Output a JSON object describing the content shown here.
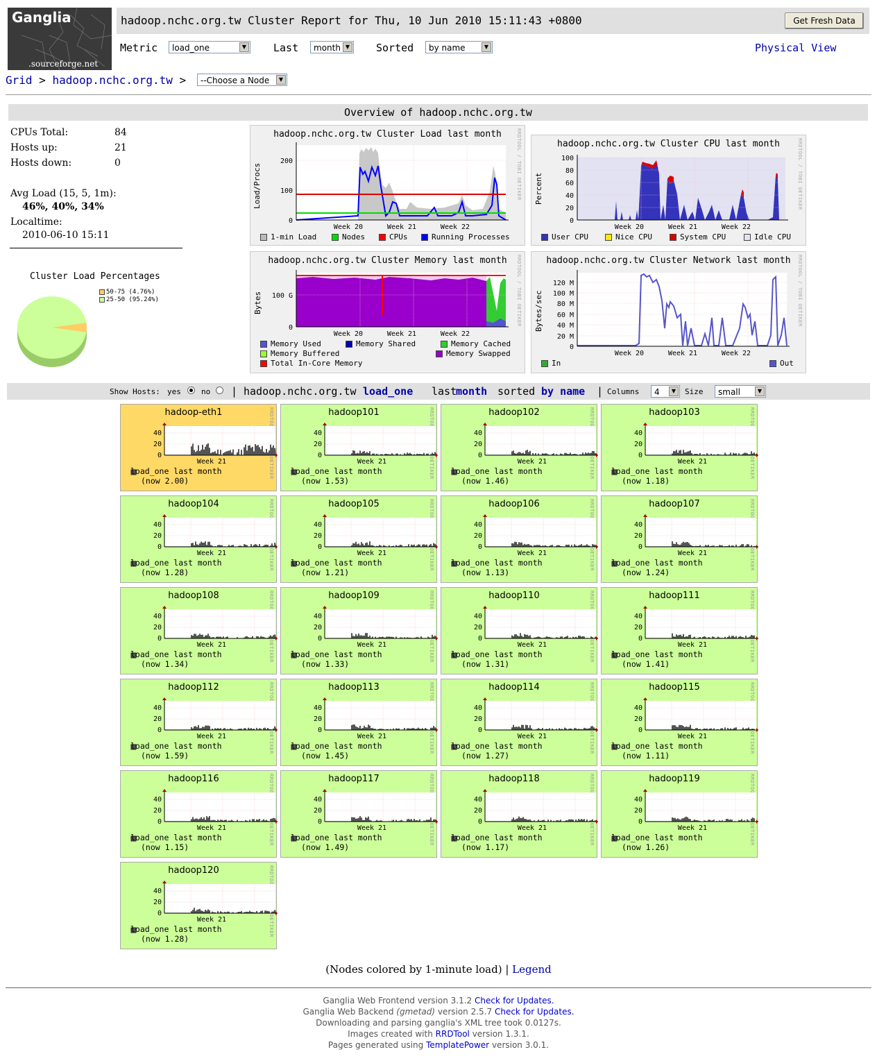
{
  "header": {
    "logo_text": "Ganglia",
    "logo_sub": ".sourceforge.net",
    "title": "hadoop.nchc.org.tw Cluster Report for Thu, 10 Jun 2010 15:11:43 +0800",
    "fresh_button": "Get Fresh Data",
    "metric_label": "Metric",
    "metric_value": "load_one",
    "last_label": "Last",
    "last_value": "month",
    "sorted_label": "Sorted",
    "sorted_value": "by name",
    "physical_view": "Physical View"
  },
  "breadcrumb": {
    "grid": "Grid",
    "sep1": ">",
    "cluster": "hadoop.nchc.org.tw",
    "sep2": ">",
    "node_select": "--Choose a Node"
  },
  "overview": {
    "title": "Overview of hadoop.nchc.org.tw",
    "cpus_label": "CPUs Total:",
    "cpus_value": "84",
    "hosts_up_label": "Hosts up:",
    "hosts_up_value": "21",
    "hosts_down_label": "Hosts down:",
    "hosts_down_value": "0",
    "avg_load_label": "Avg Load (15, 5, 1m):",
    "avg_load_value": "46%, 40%, 34%",
    "localtime_label": "Localtime:",
    "localtime_value": "2010-06-10 15:11",
    "pie_title": "Cluster Load Percentages",
    "pie_legend": [
      {
        "label": "50-75 (4.76%)",
        "color": "#ffcc66",
        "pct": 4.76
      },
      {
        "label": "25-50 (95.24%)",
        "color": "#ccff99",
        "pct": 95.24
      }
    ]
  },
  "cluster_graphs": {
    "load": {
      "title": "hadoop.nchc.org.tw Cluster Load last month",
      "ylabel": "Load/Procs",
      "yticks": [
        "200",
        "100",
        "0"
      ],
      "xticks": [
        "Week 20",
        "Week 21",
        "Week 22"
      ],
      "legend": [
        {
          "label": "1-min Load",
          "color": "#bbbbbb"
        },
        {
          "label": "Nodes",
          "color": "#00dd00"
        },
        {
          "label": "CPUs",
          "color": "#ff0000"
        },
        {
          "label": "Running Processes",
          "color": "#0000ff"
        }
      ]
    },
    "cpu": {
      "title": "hadoop.nchc.org.tw Cluster CPU last month",
      "ylabel": "Percent",
      "yticks": [
        "100",
        "80",
        "60",
        "40",
        "20",
        "0"
      ],
      "xticks": [
        "Week 20",
        "Week 21",
        "Week 22"
      ],
      "legend": [
        {
          "label": "User CPU",
          "color": "#3333bb"
        },
        {
          "label": "Nice CPU",
          "color": "#ffea00"
        },
        {
          "label": "System CPU",
          "color": "#dd0000"
        },
        {
          "label": "Idle CPU",
          "color": "#e2e2f2"
        }
      ]
    },
    "memory": {
      "title": "hadoop.nchc.org.tw Cluster Memory last month",
      "ylabel": "Bytes",
      "yticks": [
        "100 G",
        "0"
      ],
      "xticks": [
        "Week 20",
        "Week 21",
        "Week 22"
      ],
      "legend": [
        {
          "label": "Memory Used",
          "color": "#5555cc"
        },
        {
          "label": "Memory Shared",
          "color": "#0000aa"
        },
        {
          "label": "Memory Cached",
          "color": "#33cc33"
        },
        {
          "label": "Memory Buffered",
          "color": "#99ff33"
        },
        {
          "label": "Memory Swapped",
          "color": "#9900cc"
        },
        {
          "label": "Total In-Core Memory",
          "color": "#ff0000"
        }
      ]
    },
    "network": {
      "title": "hadoop.nchc.org.tw Cluster Network last month",
      "ylabel": "Bytes/sec",
      "yticks": [
        "120 M",
        "100 M",
        "80 M",
        "60 M",
        "40 M",
        "20 M",
        "0"
      ],
      "xticks": [
        "Week 20",
        "Week 21",
        "Week 22"
      ],
      "legend": [
        {
          "label": "In",
          "color": "#33aa33"
        },
        {
          "label": "Out",
          "color": "#5555cc"
        }
      ]
    },
    "watermark": "RRDTOOL / TOBI OETIKER"
  },
  "hosts_bar": {
    "show_hosts": "Show Hosts:",
    "yes": "yes",
    "no": "no",
    "sep": "|",
    "cluster": "hadoop.nchc.org.tw",
    "metric": "load_one",
    "last": "last",
    "range": "month",
    "sorted": "sorted",
    "sortby": "by name",
    "sep2": "|",
    "columns_label": "Columns",
    "columns_value": "4",
    "size_label": "Size",
    "size_value": "small"
  },
  "host_tiles": {
    "yticks": [
      "40",
      "20",
      "0"
    ],
    "xtick": "Week 21",
    "legend": "load_one last month",
    "watermark": "RRDTOOL / TOBI OETIKER",
    "hosts": [
      {
        "name": "hadoop-eth1",
        "now": "(now 2.00)",
        "color": "#ffd966"
      },
      {
        "name": "hadoop101",
        "now": "(now 1.53)",
        "color": "#ccff99"
      },
      {
        "name": "hadoop102",
        "now": "(now 1.46)",
        "color": "#ccff99"
      },
      {
        "name": "hadoop103",
        "now": "(now 1.18)",
        "color": "#ccff99"
      },
      {
        "name": "hadoop104",
        "now": "(now 1.28)",
        "color": "#ccff99"
      },
      {
        "name": "hadoop105",
        "now": "(now 1.21)",
        "color": "#ccff99"
      },
      {
        "name": "hadoop106",
        "now": "(now 1.13)",
        "color": "#ccff99"
      },
      {
        "name": "hadoop107",
        "now": "(now 1.24)",
        "color": "#ccff99"
      },
      {
        "name": "hadoop108",
        "now": "(now 1.34)",
        "color": "#ccff99"
      },
      {
        "name": "hadoop109",
        "now": "(now 1.33)",
        "color": "#ccff99"
      },
      {
        "name": "hadoop110",
        "now": "(now 1.31)",
        "color": "#ccff99"
      },
      {
        "name": "hadoop111",
        "now": "(now 1.41)",
        "color": "#ccff99"
      },
      {
        "name": "hadoop112",
        "now": "(now 1.59)",
        "color": "#ccff99"
      },
      {
        "name": "hadoop113",
        "now": "(now 1.45)",
        "color": "#ccff99"
      },
      {
        "name": "hadoop114",
        "now": "(now 1.27)",
        "color": "#ccff99"
      },
      {
        "name": "hadoop115",
        "now": "(now 1.11)",
        "color": "#ccff99"
      },
      {
        "name": "hadoop116",
        "now": "(now 1.15)",
        "color": "#ccff99"
      },
      {
        "name": "hadoop117",
        "now": "(now 1.49)",
        "color": "#ccff99"
      },
      {
        "name": "hadoop118",
        "now": "(now 1.17)",
        "color": "#ccff99"
      },
      {
        "name": "hadoop119",
        "now": "(now 1.26)",
        "color": "#ccff99"
      },
      {
        "name": "hadoop120",
        "now": "(now 1.28)",
        "color": "#ccff99"
      }
    ]
  },
  "footnote": {
    "text": "(Nodes colored by 1-minute load) |",
    "legend_link": "Legend"
  },
  "footer": {
    "l1a": "Ganglia Web Frontend version 3.1.2",
    "l1b": "Check for Updates.",
    "l2a": "Ganglia Web Backend",
    "l2b": "(gmetad)",
    "l2c": "version 2.5.7",
    "l2d": "Check for Updates.",
    "l3": "Downloading and parsing ganglia's XML tree took 0.0127s.",
    "l4a": "Images created with",
    "l4b": "RRDTool",
    "l4c": "version 1.3.1.",
    "l5a": "Pages generated using",
    "l5b": "TemplatePower",
    "l5c": "version 3.0.1."
  }
}
